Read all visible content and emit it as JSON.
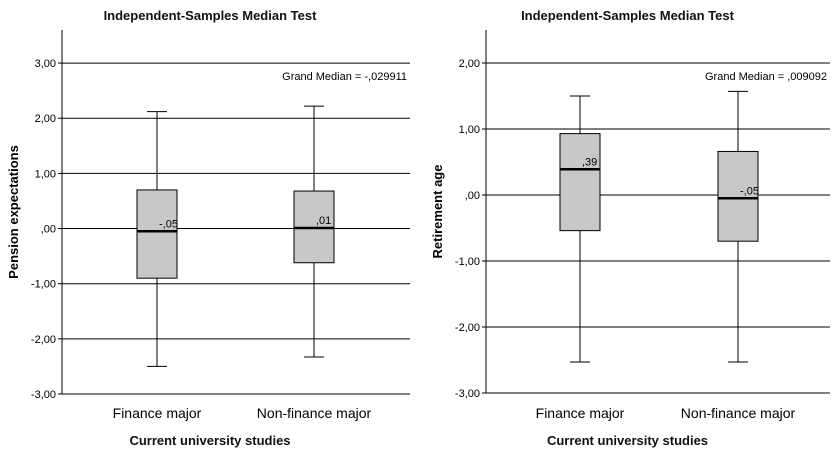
{
  "chart_data": [
    {
      "type": "boxplot",
      "title": "Independent-Samples Median Test",
      "xlabel": "Current university studies",
      "ylabel": "Pension expectations",
      "grand_median_label": "Grand Median = -,029911",
      "ylim": [
        -3,
        3.6
      ],
      "yticks": [
        3,
        2,
        1,
        0,
        -1,
        -2,
        -3
      ],
      "ytick_labels": [
        "3,00",
        "2,00",
        "1,00",
        ",00",
        "-1,00",
        "-2,00",
        "-3,00"
      ],
      "grid": true,
      "categories": [
        "Finance major",
        "Non-finance major"
      ],
      "boxes": [
        {
          "min": -2.5,
          "q1": -0.9,
          "median": -0.05,
          "q3": 0.7,
          "max": 2.12,
          "median_label": "-,05"
        },
        {
          "min": -2.33,
          "q1": -0.62,
          "median": 0.01,
          "q3": 0.68,
          "max": 2.22,
          "median_label": ",01"
        }
      ]
    },
    {
      "type": "boxplot",
      "title": "Independent-Samples Median Test",
      "xlabel": "Current university studies",
      "ylabel": "Retirement age",
      "grand_median_label": "Grand Median = ,009092",
      "ylim": [
        -3,
        2.5
      ],
      "yticks": [
        2,
        1,
        0,
        -1,
        -2,
        -3
      ],
      "ytick_labels": [
        "2,00",
        "1,00",
        ",00",
        "-1,00",
        "-2,00",
        "-3,00"
      ],
      "grid": true,
      "categories": [
        "Finance major",
        "Non-finance major"
      ],
      "boxes": [
        {
          "min": -2.53,
          "q1": -0.54,
          "median": 0.39,
          "q3": 0.93,
          "max": 1.5,
          "median_label": ",39"
        },
        {
          "min": -2.53,
          "q1": -0.7,
          "median": -0.05,
          "q3": 0.66,
          "max": 1.57,
          "median_label": "-,05"
        }
      ]
    }
  ]
}
